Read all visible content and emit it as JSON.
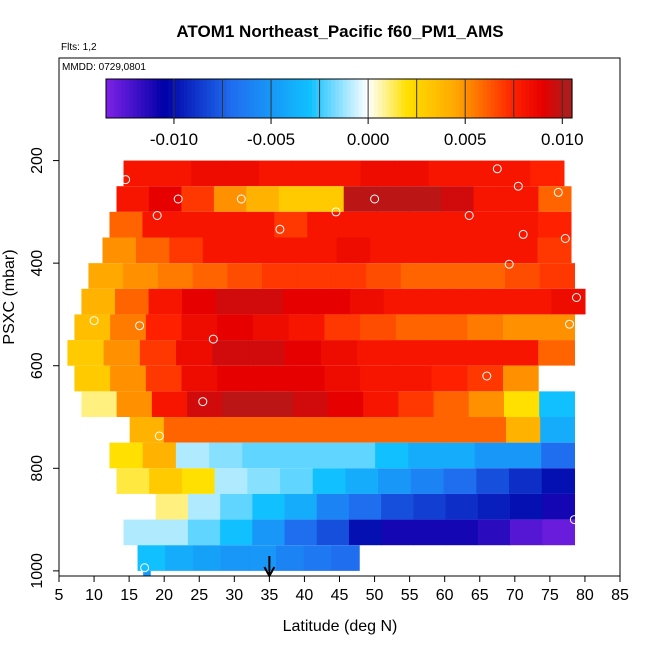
{
  "chart_data": {
    "type": "heatmap",
    "title": "ATOM1 Northeast_Pacific f60_PM1_AMS",
    "flights_label": "Flts: 1,2",
    "date_label": "MMDD: 0729,0801",
    "xlabel": "Latitude (deg N)",
    "ylabel": "PSXC (mbar)",
    "xlim": [
      5,
      85
    ],
    "ylim": [
      1010,
      0
    ],
    "x_ticks": [
      "5",
      "10",
      "15",
      "20",
      "25",
      "30",
      "35",
      "40",
      "45",
      "50",
      "55",
      "60",
      "65",
      "70",
      "75",
      "80",
      "85"
    ],
    "y_ticks": [
      "200",
      "400",
      "600",
      "800",
      "1000"
    ],
    "colorbar": {
      "range": [
        -0.0135,
        0.0105
      ],
      "ticks": [
        "-0.010",
        "-0.005",
        "0.000",
        "0.005",
        "0.010"
      ],
      "tick_values": [
        -0.01,
        -0.005,
        0.0,
        0.005,
        0.01
      ],
      "colors": [
        "#7f22e8",
        "#0000a8",
        "#1f6ef0",
        "#10c0ff",
        "#ffffff",
        "#ffe000",
        "#ffa800",
        "#ff2000",
        "#e60000",
        "#a62020"
      ]
    },
    "arrow_latitude": 35,
    "pressure_bins": [
      {
        "p": 225,
        "x0": 14.2,
        "x1": 77.0,
        "values": [
          0.008,
          0.008,
          0.0085,
          0.0085,
          0.008,
          0.008,
          0.008,
          0.0085,
          0.0085,
          0.008,
          0.008,
          0.008,
          0.0075
        ]
      },
      {
        "p": 275,
        "x0": 13.2,
        "x1": 78.0,
        "values": [
          0.008,
          0.009,
          0.007,
          0.005,
          0.004,
          0.003,
          0.003,
          0.01,
          0.01,
          0.01,
          0.0095,
          0.008,
          0.008,
          0.006
        ]
      },
      {
        "p": 325,
        "x0": 12.2,
        "x1": 78.0,
        "values": [
          0.006,
          0.008,
          0.008,
          0.008,
          0.008,
          0.007,
          0.008,
          0.008,
          0.008,
          0.008,
          0.008,
          0.008,
          0.008,
          0.0075
        ]
      },
      {
        "p": 375,
        "x0": 11.2,
        "x1": 78.0,
        "values": [
          0.005,
          0.006,
          0.007,
          0.008,
          0.008,
          0.008,
          0.008,
          0.0085,
          0.008,
          0.008,
          0.008,
          0.008,
          0.008,
          0.007
        ]
      },
      {
        "p": 425,
        "x0": 9.2,
        "x1": 78.5,
        "values": [
          0.0045,
          0.005,
          0.0055,
          0.006,
          0.0065,
          0.007,
          0.007,
          0.007,
          0.0065,
          0.006,
          0.006,
          0.006,
          0.0065,
          0.007
        ]
      },
      {
        "p": 475,
        "x0": 8.2,
        "x1": 80.0,
        "values": [
          0.004,
          0.006,
          0.008,
          0.009,
          0.0095,
          0.0095,
          0.009,
          0.009,
          0.0085,
          0.008,
          0.008,
          0.008,
          0.008,
          0.008,
          0.0085
        ]
      },
      {
        "p": 525,
        "x0": 7.2,
        "x1": 78.5,
        "values": [
          0.0035,
          0.0055,
          0.0075,
          0.0085,
          0.009,
          0.0085,
          0.008,
          0.007,
          0.0065,
          0.006,
          0.006,
          0.0055,
          0.005,
          0.005
        ]
      },
      {
        "p": 575,
        "x0": 6.2,
        "x1": 78.5,
        "values": [
          0.003,
          0.005,
          0.007,
          0.0085,
          0.0095,
          0.0095,
          0.009,
          0.0085,
          0.008,
          0.008,
          0.008,
          0.008,
          0.008,
          0.006
        ]
      },
      {
        "p": 625,
        "x0": 7.2,
        "x1": 78.5,
        "values": [
          0.003,
          0.005,
          0.007,
          0.0085,
          0.009,
          0.009,
          0.009,
          0.0085,
          0.008,
          0.008,
          0.0075,
          0.007,
          0.005,
          0.0
        ]
      },
      {
        "p": 675,
        "x0": 8.2,
        "x1": 78.5,
        "values": [
          0.001,
          0.005,
          0.008,
          0.0095,
          0.01,
          0.01,
          0.0095,
          0.009,
          0.008,
          0.007,
          0.006,
          0.005,
          0.002,
          -0.003
        ]
      },
      {
        "p": 725,
        "x0": 10.2,
        "x1": 78.5,
        "values": [
          0.0,
          0.004,
          0.006,
          0.006,
          0.006,
          0.006,
          0.006,
          0.006,
          0.006,
          0.006,
          0.006,
          0.006,
          0.004,
          -0.004
        ]
      },
      {
        "p": 775,
        "x0": 12.2,
        "x1": 78.5,
        "values": [
          0.002,
          0.004,
          -0.001,
          -0.0015,
          -0.002,
          -0.002,
          -0.002,
          -0.002,
          -0.003,
          -0.004,
          -0.004,
          -0.005,
          -0.005,
          -0.007
        ]
      },
      {
        "p": 825,
        "x0": 13.2,
        "x1": 78.5,
        "values": [
          0.0015,
          0.003,
          0.002,
          -0.001,
          -0.0015,
          -0.002,
          -0.003,
          -0.004,
          -0.005,
          -0.006,
          -0.007,
          -0.008,
          -0.009,
          -0.01
        ]
      },
      {
        "p": 875,
        "x0": 14.2,
        "x1": 78.5,
        "values": [
          0.0,
          0.001,
          -0.001,
          -0.002,
          -0.003,
          -0.004,
          -0.006,
          -0.007,
          -0.008,
          -0.0085,
          -0.009,
          -0.0095,
          -0.01,
          -0.011
        ]
      },
      {
        "p": 925,
        "x0": 14.2,
        "x1": 78.5,
        "values": [
          -0.001,
          -0.001,
          -0.002,
          -0.003,
          -0.005,
          -0.007,
          -0.008,
          -0.01,
          -0.011,
          -0.011,
          -0.011,
          -0.0115,
          -0.0125,
          -0.013
        ]
      },
      {
        "p": 975,
        "x0": 16.2,
        "x1": 47.8,
        "values": [
          -0.003,
          -0.004,
          -0.0045,
          -0.005,
          -0.005,
          -0.006,
          -0.0065,
          -0.007
        ]
      },
      {
        "p": 1005,
        "x0": 17.0,
        "x1": 18.0,
        "values": [
          -0.005
        ]
      }
    ],
    "sample_points": [
      {
        "lat": 67.5,
        "p": 216
      },
      {
        "lat": 14.5,
        "p": 237
      },
      {
        "lat": 70.5,
        "p": 250
      },
      {
        "lat": 76.2,
        "p": 262
      },
      {
        "lat": 22.0,
        "p": 275
      },
      {
        "lat": 31.0,
        "p": 275
      },
      {
        "lat": 50.0,
        "p": 275
      },
      {
        "lat": 44.5,
        "p": 300
      },
      {
        "lat": 19.0,
        "p": 307
      },
      {
        "lat": 63.5,
        "p": 307
      },
      {
        "lat": 36.5,
        "p": 334
      },
      {
        "lat": 71.2,
        "p": 344
      },
      {
        "lat": 77.2,
        "p": 352
      },
      {
        "lat": 69.2,
        "p": 402
      },
      {
        "lat": 78.8,
        "p": 467
      },
      {
        "lat": 10.0,
        "p": 512
      },
      {
        "lat": 16.5,
        "p": 522
      },
      {
        "lat": 77.8,
        "p": 519
      },
      {
        "lat": 27.0,
        "p": 548
      },
      {
        "lat": 66.0,
        "p": 620
      },
      {
        "lat": 25.5,
        "p": 670
      },
      {
        "lat": 19.3,
        "p": 737
      },
      {
        "lat": 78.5,
        "p": 900
      },
      {
        "lat": 17.2,
        "p": 994
      }
    ]
  }
}
